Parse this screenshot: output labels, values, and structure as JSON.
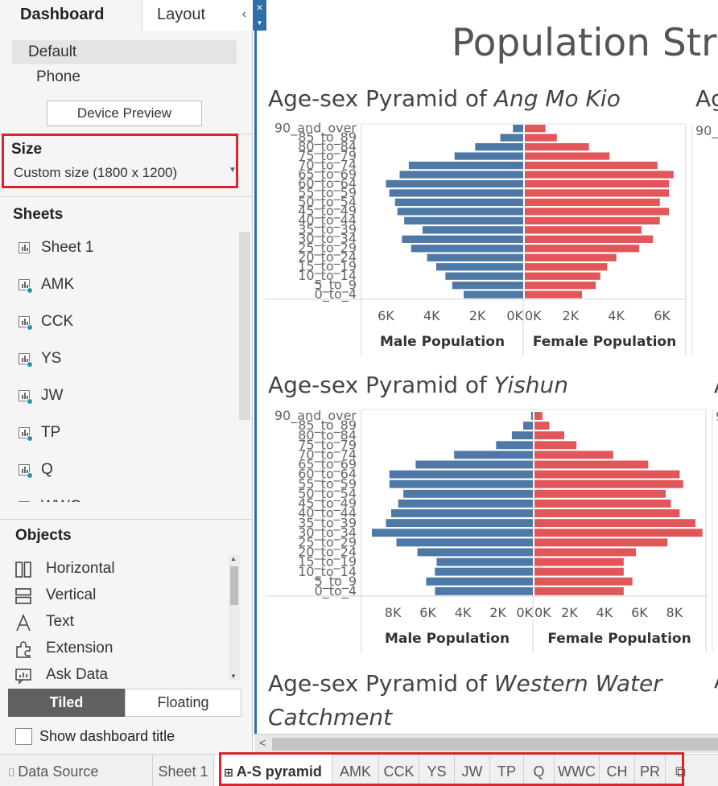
{
  "sidebar": {
    "tabs": [
      {
        "label": "Dashboard"
      },
      {
        "label": "Layout"
      }
    ],
    "collapse_glyph": "‹",
    "device": {
      "default": "Default",
      "phone": "Phone",
      "preview_button": "Device Preview"
    },
    "size": {
      "title": "Size",
      "value": "Custom size (1800 x 1200)"
    },
    "sheets": {
      "title": "Sheets",
      "items": [
        {
          "label": "Sheet 1",
          "linked": false
        },
        {
          "label": "AMK",
          "linked": true
        },
        {
          "label": "CCK",
          "linked": true
        },
        {
          "label": "YS",
          "linked": true
        },
        {
          "label": "JW",
          "linked": true
        },
        {
          "label": "TP",
          "linked": true
        },
        {
          "label": "Q",
          "linked": true
        },
        {
          "label": "WWC",
          "linked": true
        }
      ]
    },
    "objects": {
      "title": "Objects",
      "items": [
        {
          "label": "Horizontal",
          "icon": "horizontal-container-icon"
        },
        {
          "label": "Vertical",
          "icon": "vertical-container-icon"
        },
        {
          "label": "Text",
          "icon": "text-icon"
        },
        {
          "label": "Extension",
          "icon": "extension-icon"
        },
        {
          "label": "Ask Data",
          "icon": "ask-data-icon"
        }
      ]
    },
    "layout_mode": {
      "tiled": "Tiled",
      "floating": "Floating",
      "selected": "Tiled"
    },
    "show_title": {
      "label": "Show dashboard title",
      "checked": false
    }
  },
  "dashboard": {
    "title": "Population Stru",
    "charts": [
      {
        "title_prefix": "Age-sex Pyramid of ",
        "title_place": "Ang Mo Kio"
      },
      {
        "title_prefix": "Age-sex Pyramid of ",
        "title_place": "Yishun"
      },
      {
        "title_prefix": "Age-sex Pyramid of ",
        "title_place": "Western Water Catchment"
      }
    ],
    "right_cut_titles": [
      "Ag",
      "A",
      "A"
    ],
    "right_cut_axis": [
      "90_",
      "9",
      "9"
    ]
  },
  "chart_data": [
    {
      "type": "bar",
      "title": "Age-sex Pyramid of Ang Mo Kio",
      "categories": [
        "90_and_over",
        "85_to_89",
        "80_to_84",
        "75_to_79",
        "70_to_74",
        "65_to_69",
        "60_to_64",
        "55_to_59",
        "50_to_54",
        "45_to_49",
        "40_to_44",
        "35_to_39",
        "30_to_34",
        "25_to_29",
        "20_to_24",
        "15_to_19",
        "10_to_14",
        "5_to_9",
        "0_to_4"
      ],
      "series": [
        {
          "name": "Male Population",
          "values": [
            450,
            1000,
            2100,
            3000,
            5000,
            5400,
            6000,
            5850,
            5600,
            5500,
            5200,
            4400,
            5300,
            4900,
            4200,
            3800,
            3400,
            3100,
            2600
          ]
        },
        {
          "name": "Female Population",
          "values": [
            900,
            1400,
            2800,
            3700,
            5800,
            6500,
            6300,
            6300,
            5900,
            6300,
            5900,
            5100,
            5600,
            5000,
            4000,
            3600,
            3300,
            3100,
            2500
          ]
        }
      ],
      "xticks_male": [
        "6K",
        "4K",
        "2K",
        "0K"
      ],
      "xticks_female": [
        "0K",
        "2K",
        "4K",
        "6K"
      ],
      "xlim": [
        0,
        7000
      ],
      "xlabel_left": "Male Population",
      "xlabel_right": "Female Population"
    },
    {
      "type": "bar",
      "title": "Age-sex Pyramid of Yishun",
      "categories": [
        "90_and_over",
        "85_to_89",
        "80_to_84",
        "75_to_79",
        "70_to_74",
        "65_to_69",
        "60_to_64",
        "55_to_59",
        "50_to_54",
        "45_to_49",
        "40_to_44",
        "35_to_39",
        "30_to_34",
        "25_to_29",
        "20_to_24",
        "15_to_19",
        "10_to_14",
        "5_to_9",
        "0_to_4"
      ],
      "series": [
        {
          "name": "Male Population",
          "values": [
            100,
            550,
            1200,
            2100,
            4500,
            6700,
            8200,
            8200,
            7400,
            7700,
            8100,
            8400,
            9200,
            7800,
            6600,
            5500,
            5600,
            6100,
            5600
          ]
        },
        {
          "name": "Female Population",
          "values": [
            450,
            850,
            1700,
            2400,
            4500,
            6500,
            8300,
            8500,
            7500,
            7800,
            8300,
            9200,
            9600,
            7600,
            5800,
            5100,
            5100,
            5600,
            5100
          ]
        }
      ],
      "xticks_male": [
        "8K",
        "6K",
        "4K",
        "2K",
        "0K"
      ],
      "xticks_female": [
        "0K",
        "2K",
        "4K",
        "6K",
        "8K"
      ],
      "xlim": [
        0,
        9800
      ],
      "xlabel_left": "Male Population",
      "xlabel_right": "Female Population"
    }
  ],
  "bottom_tabs": [
    {
      "label": "Data Source",
      "icon": "data-source-icon"
    },
    {
      "label": "Sheet 1"
    },
    {
      "label": "A-S pyramid",
      "icon": "dashboard-icon",
      "active": true
    },
    {
      "label": "AMK"
    },
    {
      "label": "CCK"
    },
    {
      "label": "YS"
    },
    {
      "label": "JW"
    },
    {
      "label": "TP"
    },
    {
      "label": "Q"
    },
    {
      "label": "WWC"
    },
    {
      "label": "CH"
    },
    {
      "label": "PR"
    }
  ],
  "colors": {
    "male": "#4e79a7",
    "female": "#e15759",
    "highlight": "#d9232e",
    "accent": "#2e6ea8"
  }
}
